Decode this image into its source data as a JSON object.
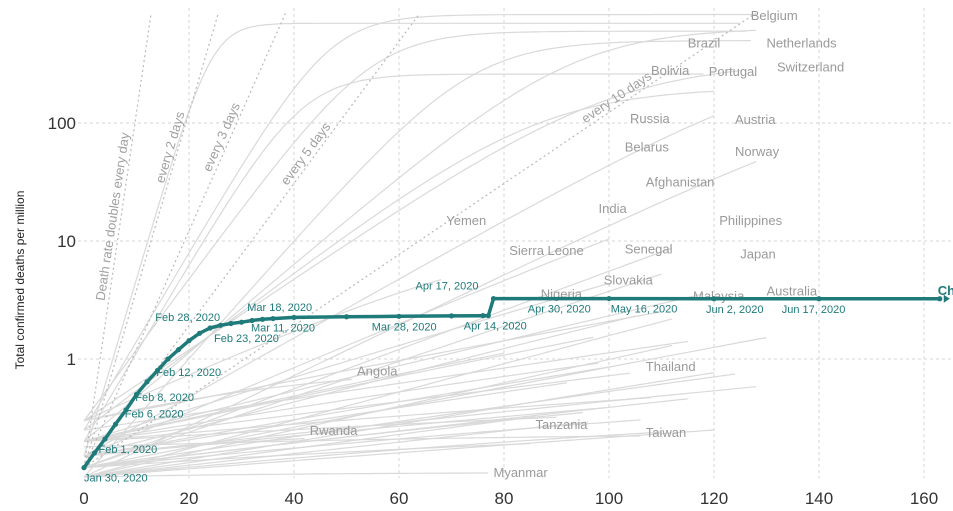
{
  "chart_data": {
    "type": "line",
    "ylabel": "Total confirmed deaths per million",
    "xlabel": "",
    "y_scale": "log",
    "xlim": [
      0,
      165
    ],
    "ylim": [
      0.1,
      850
    ],
    "x_ticks": [
      "0",
      "20",
      "40",
      "60",
      "80",
      "100",
      "120",
      "140",
      "160"
    ],
    "y_ticks": [
      {
        "value": 1,
        "label": "1"
      },
      {
        "value": 10,
        "label": "10"
      },
      {
        "value": 100,
        "label": "100"
      }
    ],
    "grid": true,
    "reference_lines": [
      {
        "label": "Death rate doubles every day",
        "doubling_days": 1
      },
      {
        "label": "every 2 days",
        "doubling_days": 2
      },
      {
        "label": "every 3 days",
        "doubling_days": 3
      },
      {
        "label": "every 5 days",
        "doubling_days": 5
      },
      {
        "label": "every 10 days",
        "doubling_days": 10
      }
    ],
    "highlight_series": {
      "name": "China",
      "display_label": "Chin",
      "color": "#1f7a7a",
      "points": [
        [
          0,
          0.12
        ],
        [
          2,
          0.16
        ],
        [
          4,
          0.21
        ],
        [
          6,
          0.28
        ],
        [
          8,
          0.37
        ],
        [
          10,
          0.5
        ],
        [
          12,
          0.64
        ],
        [
          14,
          0.8
        ],
        [
          16,
          1.0
        ],
        [
          18,
          1.2
        ],
        [
          20,
          1.43
        ],
        [
          22,
          1.65
        ],
        [
          24,
          1.83
        ],
        [
          26,
          1.93
        ],
        [
          28,
          2.0
        ],
        [
          30,
          2.05
        ],
        [
          32,
          2.12
        ],
        [
          34,
          2.17
        ],
        [
          36,
          2.2
        ],
        [
          40,
          2.25
        ],
        [
          50,
          2.28
        ],
        [
          60,
          2.3
        ],
        [
          70,
          2.32
        ],
        [
          76,
          2.33
        ],
        [
          77,
          2.33
        ],
        [
          78,
          3.25
        ],
        [
          100,
          3.25
        ],
        [
          120,
          3.24
        ],
        [
          140,
          3.24
        ],
        [
          163,
          3.24
        ]
      ]
    },
    "point_annotations": [
      {
        "text": "Jan 30, 2020",
        "x": 0,
        "y": 0.12
      },
      {
        "text": "Feb 1, 2020",
        "x": 2,
        "y": 0.16
      },
      {
        "text": "Feb 6, 2020",
        "x": 7,
        "y": 0.32
      },
      {
        "text": "Feb 8, 2020",
        "x": 9,
        "y": 0.44
      },
      {
        "text": "Feb 12, 2020",
        "x": 13,
        "y": 0.72
      },
      {
        "text": "Feb 28, 2020",
        "x": 25,
        "y": 1.9
      },
      {
        "text": "Feb 23, 2020",
        "x": 24,
        "y": 1.83
      },
      {
        "text": "Mar 18, 2020",
        "x": 33,
        "y": 2.15
      },
      {
        "text": "Mar 11, 2020",
        "x": 40,
        "y": 2.25
      },
      {
        "text": "Mar 28, 2020",
        "x": 55,
        "y": 2.29
      },
      {
        "text": "Apr 14, 2020",
        "x": 75,
        "y": 2.33
      },
      {
        "text": "Apr 17, 2020",
        "x": 78,
        "y": 3.25
      },
      {
        "text": "Apr 30, 2020",
        "x": 91,
        "y": 3.25
      },
      {
        "text": "May 16, 2020",
        "x": 107,
        "y": 3.25
      },
      {
        "text": "Jun 2, 2020",
        "x": 124,
        "y": 3.24
      },
      {
        "text": "Jun 17, 2020",
        "x": 139,
        "y": 3.24
      }
    ],
    "country_labels": [
      {
        "name": "Belgium",
        "x": 127,
        "y": 820
      },
      {
        "name": "Brazil",
        "x": 115,
        "y": 480
      },
      {
        "name": "Netherlands",
        "x": 130,
        "y": 480
      },
      {
        "name": "Bolivia",
        "x": 108,
        "y": 280
      },
      {
        "name": "Portugal",
        "x": 119,
        "y": 275
      },
      {
        "name": "Switzerland",
        "x": 132,
        "y": 300
      },
      {
        "name": "Russia",
        "x": 104,
        "y": 110
      },
      {
        "name": "Austria",
        "x": 124,
        "y": 108
      },
      {
        "name": "Belarus",
        "x": 103,
        "y": 63
      },
      {
        "name": "Norway",
        "x": 124,
        "y": 58
      },
      {
        "name": "Afghanistan",
        "x": 107,
        "y": 32
      },
      {
        "name": "India",
        "x": 98,
        "y": 19
      },
      {
        "name": "Yemen",
        "x": 69,
        "y": 15
      },
      {
        "name": "Philippines",
        "x": 121,
        "y": 15
      },
      {
        "name": "Sierra Leone",
        "x": 81,
        "y": 8.4
      },
      {
        "name": "Senegal",
        "x": 103,
        "y": 8.6
      },
      {
        "name": "Japan",
        "x": 125,
        "y": 7.8
      },
      {
        "name": "Slovakia",
        "x": 99,
        "y": 4.7
      },
      {
        "name": "Nigeria",
        "x": 87,
        "y": 3.6
      },
      {
        "name": "Malaysia",
        "x": 116,
        "y": 3.45
      },
      {
        "name": "Australia",
        "x": 130,
        "y": 3.8
      },
      {
        "name": "Angola",
        "x": 52,
        "y": 0.8
      },
      {
        "name": "Thailand",
        "x": 107,
        "y": 0.87
      },
      {
        "name": "Rwanda",
        "x": 43,
        "y": 0.25
      },
      {
        "name": "Tanzania",
        "x": 86,
        "y": 0.28
      },
      {
        "name": "Taiwan",
        "x": 107,
        "y": 0.24
      },
      {
        "name": "Myanmar",
        "x": 78,
        "y": 0.11
      }
    ],
    "background_lines": [
      {
        "d": 4,
        "s": 0.25,
        "p": 160,
        "x": 128,
        "c": 830
      },
      {
        "d": 2,
        "s": 0.15,
        "p": 180,
        "x": 125,
        "c": 700
      },
      {
        "d": 5,
        "s": 0.3,
        "p": 150,
        "x": 126,
        "c": 600
      },
      {
        "d": 8,
        "s": 0.2,
        "p": 170,
        "x": 128,
        "c": 640
      },
      {
        "d": 12,
        "s": 0.15,
        "p": 150,
        "x": 120,
        "c": 460
      },
      {
        "d": 6,
        "s": 0.1,
        "p": 190,
        "x": 127,
        "c": 500
      },
      {
        "d": 18,
        "s": 0.12,
        "p": 140,
        "x": 112,
        "c": 300
      },
      {
        "d": 10,
        "s": 0.3,
        "p": 180,
        "x": 125,
        "c": 330
      },
      {
        "d": 14,
        "s": 0.1,
        "p": 200,
        "x": 128,
        "c": 280
      },
      {
        "d": 4,
        "s": 0.2,
        "p": 210,
        "x": 118,
        "c": 260
      },
      {
        "d": 9,
        "s": 0.25,
        "p": 200,
        "x": 120,
        "c": 200
      },
      {
        "d": 20,
        "s": 0.12,
        "p": 230,
        "x": 110,
        "c": 150
      },
      {
        "d": 16,
        "s": 0.15,
        "p": 200,
        "x": 100,
        "c": 115
      },
      {
        "d": 25,
        "s": 0.1,
        "p": 210,
        "x": 112,
        "c": 104
      },
      {
        "d": 22,
        "s": 0.2,
        "p": 190,
        "x": 100,
        "c": 65
      },
      {
        "d": 30,
        "s": 0.1,
        "p": 200,
        "x": 112,
        "c": 55
      },
      {
        "d": 26,
        "s": 0.15,
        "p": 220,
        "x": 105,
        "c": 34
      },
      {
        "d": 35,
        "s": 0.12,
        "p": 200,
        "x": 130,
        "c": 40
      },
      {
        "d": 32,
        "s": 0.2,
        "p": 180,
        "x": 97,
        "c": 20
      },
      {
        "d": 15,
        "s": 0.3,
        "p": 220,
        "x": 68,
        "c": 14
      },
      {
        "d": 40,
        "s": 0.1,
        "p": 210,
        "x": 120,
        "c": 16
      },
      {
        "d": 30,
        "s": 0.2,
        "p": 230,
        "x": 80,
        "c": 8
      },
      {
        "d": 38,
        "s": 0.15,
        "p": 190,
        "x": 101,
        "c": 9
      },
      {
        "d": 45,
        "s": 0.12,
        "p": 200,
        "x": 124,
        "c": 8
      },
      {
        "d": 40,
        "s": 0.2,
        "p": 230,
        "x": 98,
        "c": 4.8
      },
      {
        "d": 48,
        "s": 0.1,
        "p": 200,
        "x": 86,
        "c": 3.7
      },
      {
        "d": 55,
        "s": 0.12,
        "p": 220,
        "x": 115,
        "c": 3.5
      },
      {
        "d": 60,
        "s": 0.15,
        "p": 200,
        "x": 128,
        "c": 3.9
      },
      {
        "d": 20,
        "s": 0.3,
        "p": 240,
        "x": 51,
        "c": 0.9
      },
      {
        "d": 60,
        "s": 0.12,
        "p": 260,
        "x": 106,
        "c": 0.85
      },
      {
        "d": 25,
        "s": 0.15,
        "p": 260,
        "x": 42,
        "c": 0.26
      },
      {
        "d": 60,
        "s": 0.12,
        "p": 250,
        "x": 85,
        "c": 0.3
      },
      {
        "d": 50,
        "s": 0.18,
        "p": 230,
        "x": 106,
        "c": 0.24
      },
      {
        "d": 30,
        "s": 0.1,
        "p": 280,
        "x": 77,
        "c": 0.11
      },
      {
        "d": 70,
        "s": 0.2,
        "p": 200,
        "x": 108,
        "c": 1.6
      },
      {
        "d": 50,
        "s": 0.12,
        "p": 220,
        "x": 95,
        "c": 1.2
      },
      {
        "d": 65,
        "s": 0.15,
        "p": 240,
        "x": 100,
        "c": 2.4
      },
      {
        "d": 80,
        "s": 0.1,
        "p": 200,
        "x": 120,
        "c": 1.4
      },
      {
        "d": 75,
        "s": 0.2,
        "p": 230,
        "x": 90,
        "c": 0.6
      },
      {
        "d": 55,
        "s": 0.1,
        "p": 260,
        "x": 110,
        "c": 0.45
      },
      {
        "d": 45,
        "s": 0.25,
        "p": 180,
        "x": 115,
        "c": 28
      },
      {
        "d": 35,
        "s": 0.3,
        "p": 170,
        "x": 110,
        "c": 45
      },
      {
        "d": 28,
        "s": 0.2,
        "p": 210,
        "x": 118,
        "c": 85
      },
      {
        "d": 42,
        "s": 0.15,
        "p": 250,
        "x": 92,
        "c": 6
      },
      {
        "d": 52,
        "s": 0.2,
        "p": 240,
        "x": 104,
        "c": 11
      },
      {
        "d": 58,
        "s": 0.1,
        "p": 220,
        "x": 96,
        "c": 2.8
      }
    ]
  }
}
